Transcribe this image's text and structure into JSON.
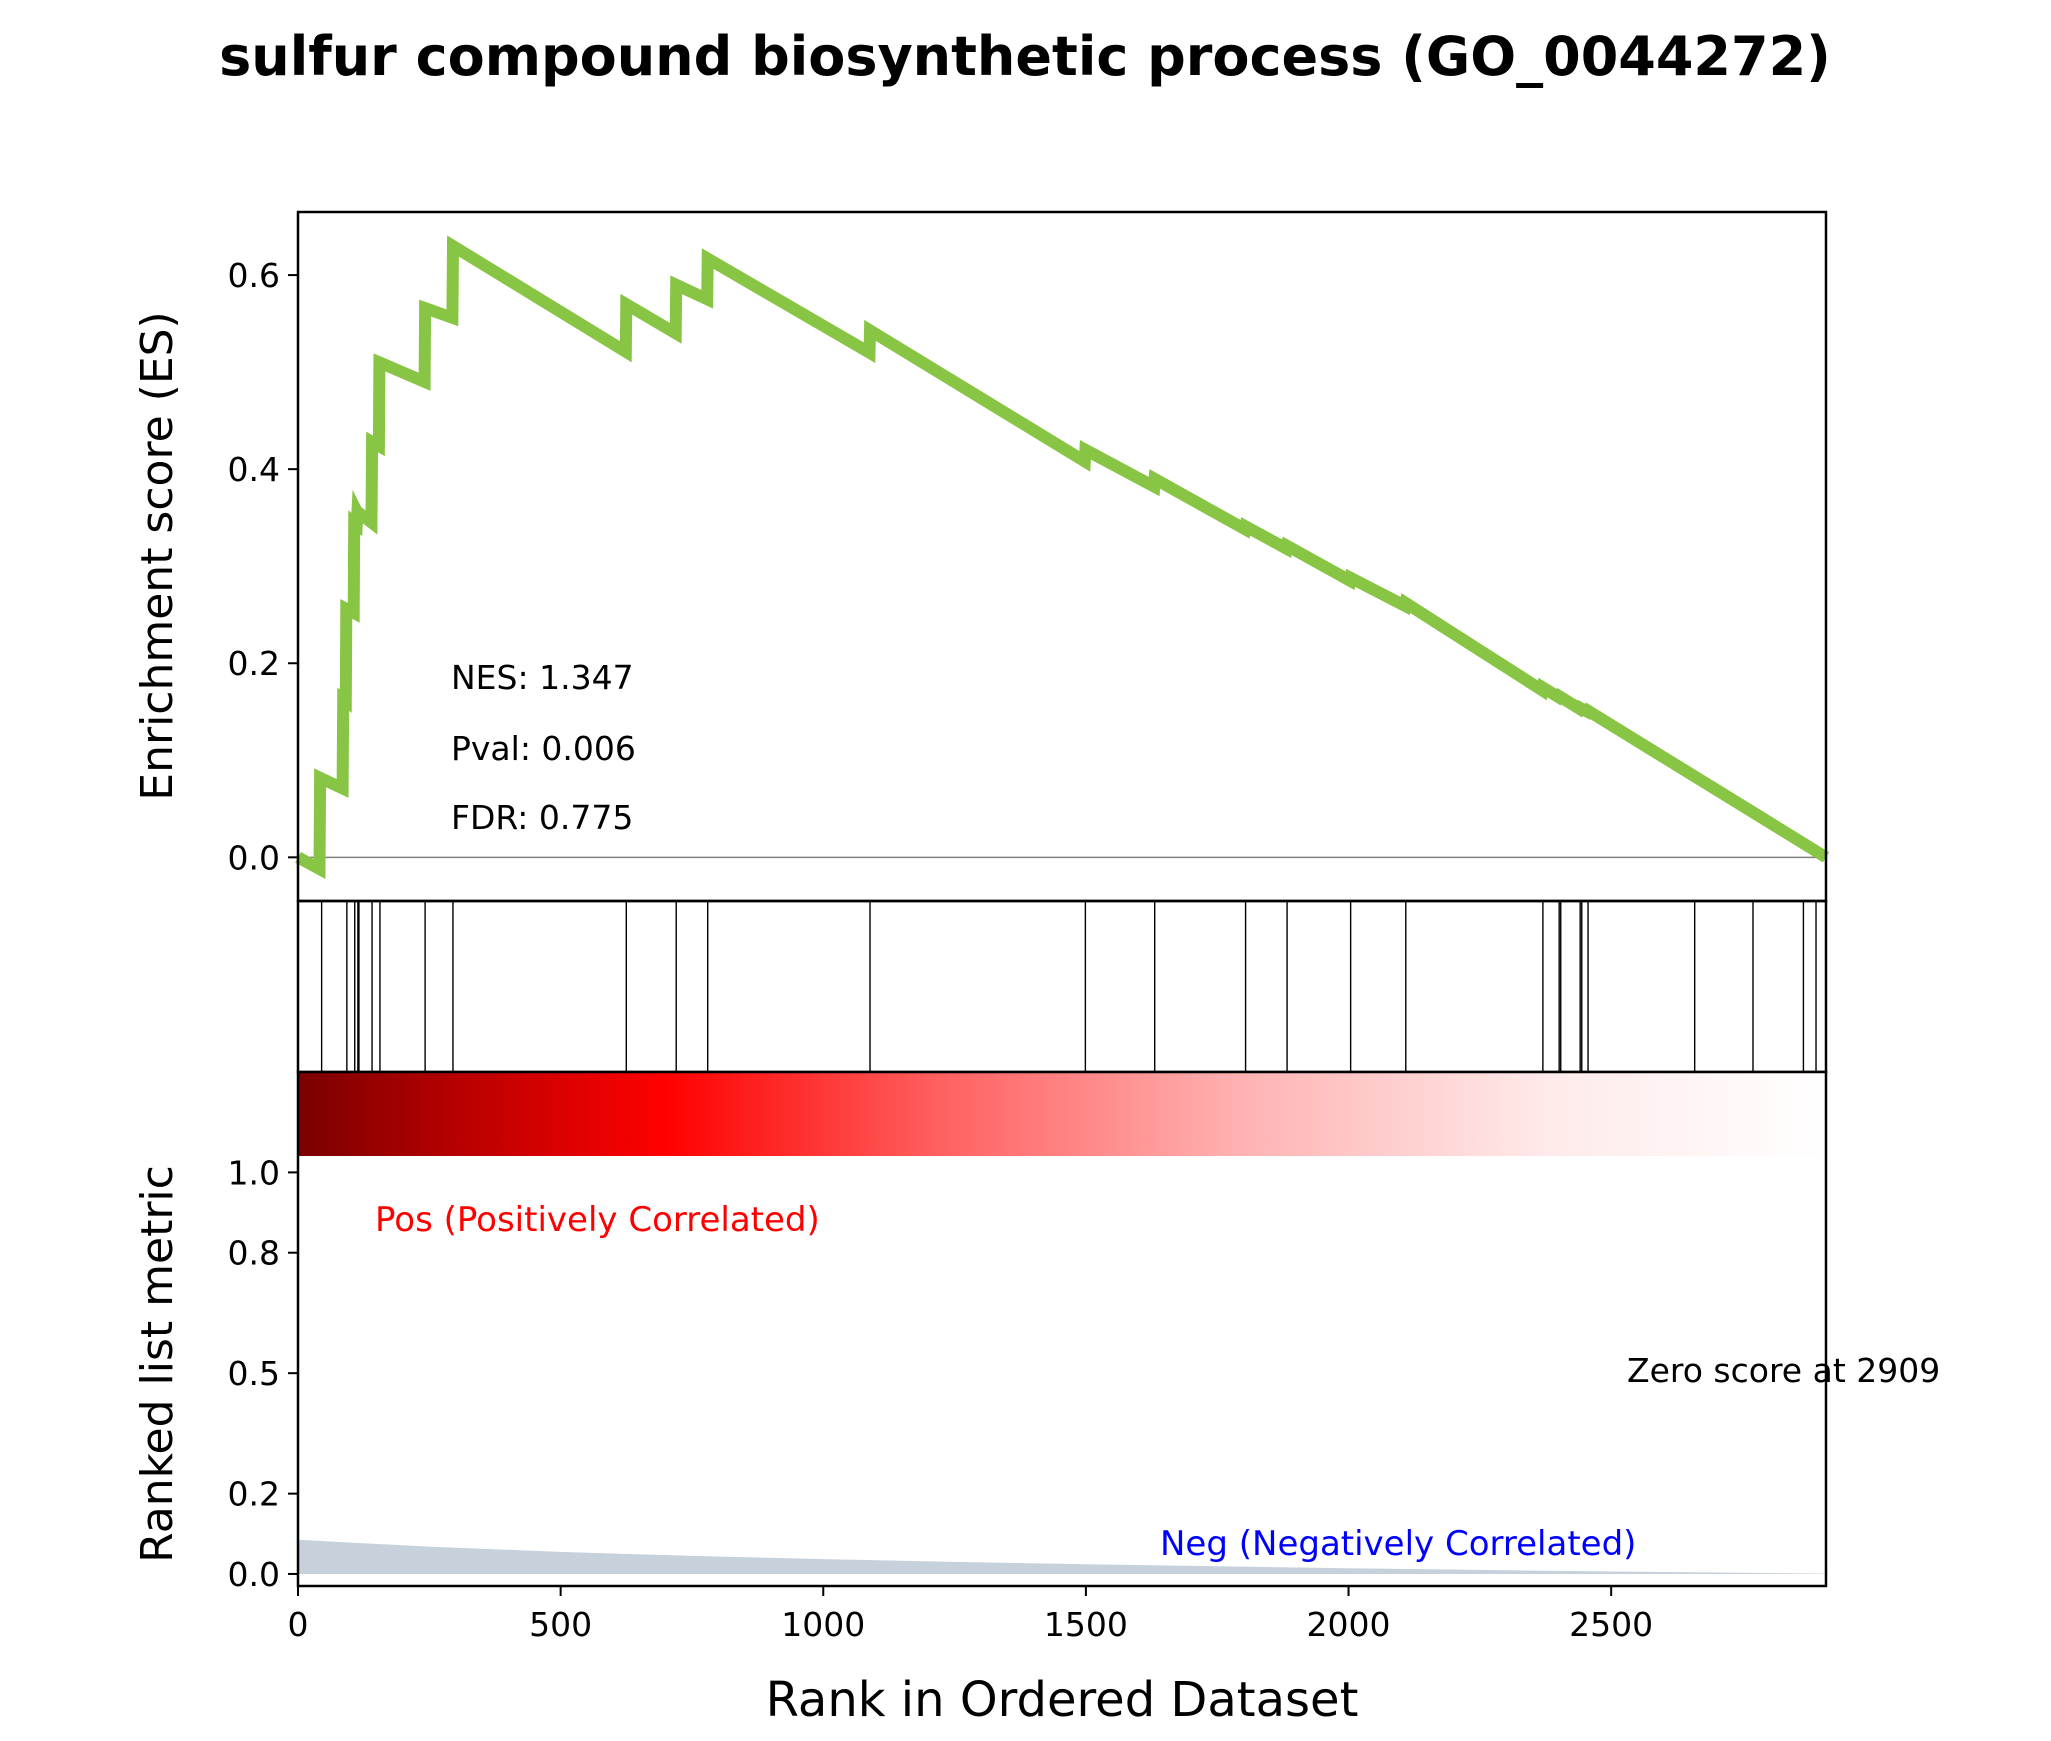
{
  "chart_data": {
    "type": "line",
    "title": "sulfur compound biosynthetic process (GO_0044272)",
    "xlabel": "Rank in Ordered Dataset",
    "xlim": [
      0,
      2909
    ],
    "xticks": [
      0,
      500,
      1000,
      1500,
      2000,
      2500
    ],
    "es_panel": {
      "ylabel": "Enrichment score (ES)",
      "ylim": [
        -0.045,
        0.665
      ],
      "yticks": [
        0.0,
        0.2,
        0.4,
        0.6
      ],
      "ytick_labels": [
        "0.0",
        "0.2",
        "0.4",
        "0.6"
      ],
      "line_color": "#88c544",
      "zero_line_color": "#808080",
      "stats": [
        {
          "label": "NES: 1.347"
        },
        {
          "label": "Pval: 0.006"
        },
        {
          "label": "FDR: 0.775"
        }
      ],
      "series": [
        {
          "x": [
            0,
            41,
            42,
            85,
            86,
            91,
            92,
            106,
            107,
            112,
            113,
            115,
            116,
            140,
            141,
            154,
            155,
            241,
            242,
            294,
            295,
            624,
            625,
            719,
            720,
            779,
            780,
            1088,
            1089,
            1498,
            1499,
            1630,
            1631,
            1803,
            1804,
            1882,
            1883,
            2003,
            2004,
            2108,
            2109,
            2369,
            2370,
            2400,
            2401,
            2440,
            2441,
            2455,
            2456,
            2909
          ],
          "y": [
            0.0,
            -0.012,
            0.082,
            0.071,
            0.163,
            0.161,
            0.256,
            0.252,
            0.345,
            0.343,
            0.355,
            0.353,
            0.355,
            0.345,
            0.428,
            0.424,
            0.51,
            0.49,
            0.566,
            0.556,
            0.63,
            0.521,
            0.57,
            0.54,
            0.59,
            0.575,
            0.617,
            0.52,
            0.543,
            0.408,
            0.42,
            0.382,
            0.39,
            0.338,
            0.341,
            0.318,
            0.321,
            0.285,
            0.288,
            0.259,
            0.262,
            0.172,
            0.175,
            0.165,
            0.166,
            0.153,
            0.154,
            0.15,
            0.151,
            0.0
          ]
        }
      ]
    },
    "hits_panel": {
      "hit_ranks": [
        45,
        93,
        108,
        114,
        116,
        141,
        156,
        242,
        295,
        625,
        720,
        780,
        1089,
        1499,
        1631,
        1804,
        1883,
        2004,
        2109,
        2370,
        2401,
        2404,
        2441,
        2444,
        2456,
        2659,
        2770,
        2866,
        2890
      ]
    },
    "rank_panel": {
      "ylabel": "Ranked list metric",
      "ylim": [
        -0.03,
        1.25
      ],
      "yticks": [
        0.0,
        0.2,
        0.5,
        0.8,
        1.0
      ],
      "ytick_labels": [
        "0.0",
        "0.2",
        "0.5",
        "0.8",
        "1.0"
      ],
      "pos_label": "Pos (Positively Correlated)",
      "neg_label": "Neg (Negatively Correlated)",
      "zero_score_label": "Zero score at 2909",
      "pos_color": "#ff0000",
      "neg_color": "#0000ff",
      "fill_color": "#c6d1dc",
      "metric": {
        "x": [
          0,
          100,
          250,
          500,
          750,
          1000,
          1250,
          1500,
          1750,
          2000,
          2250,
          2500,
          2750,
          2909
        ],
        "y": [
          0.085,
          0.078,
          0.068,
          0.055,
          0.045,
          0.037,
          0.03,
          0.024,
          0.019,
          0.014,
          0.01,
          0.006,
          0.003,
          0.001
        ]
      },
      "heatmap_colors": [
        "#7a0000",
        "#d40000",
        "#ff0000",
        "#ff6060",
        "#ffb3b3",
        "#ffe6e6",
        "#ffffff"
      ]
    }
  }
}
